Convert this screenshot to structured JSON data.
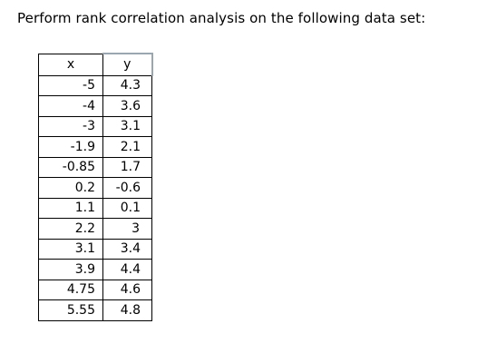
{
  "prompt": "Perform rank correlation analysis on the following data set:",
  "table": {
    "headers": [
      "x",
      "y"
    ],
    "rows": [
      [
        "-5",
        "4.3"
      ],
      [
        "-4",
        "3.6"
      ],
      [
        "-3",
        "3.1"
      ],
      [
        "-1.9",
        "2.1"
      ],
      [
        "-0.85",
        "1.7"
      ],
      [
        "0.2",
        "-0.6"
      ],
      [
        "1.1",
        "0.1"
      ],
      [
        "2.2",
        "3"
      ],
      [
        "3.1",
        "3.4"
      ],
      [
        "3.9",
        "4.4"
      ],
      [
        "4.75",
        "4.6"
      ],
      [
        "5.55",
        "4.8"
      ]
    ]
  }
}
